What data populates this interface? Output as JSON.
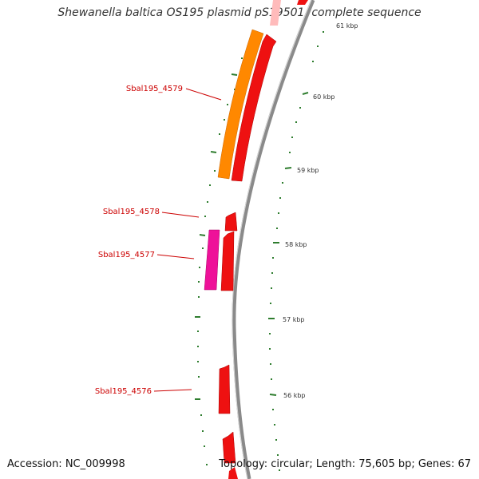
{
  "header": {
    "title": "Shewanella baltica OS195 plasmid pS19501, complete sequence"
  },
  "footer": {
    "accession": "Accession: NC_009998",
    "summary": "Topology: circular; Length: 75,605 bp; Genes: 67"
  },
  "scale_labels": [
    "61 kbp",
    "60 kbp",
    "59 kbp",
    "58 kbp",
    "57 kbp",
    "56 kbp"
  ],
  "gene_labels": [
    "Sbal195_4579",
    "Sbal195_4578",
    "Sbal195_4577",
    "Sbal195_4576"
  ],
  "colors": {
    "backbone": "#8a8a8a",
    "cds_forward": "#ee1111",
    "orange_feature": "#ff8800",
    "pink_feature": "#ee1199",
    "ticks": "#2e7d2e",
    "label_red": "#cc0000"
  }
}
